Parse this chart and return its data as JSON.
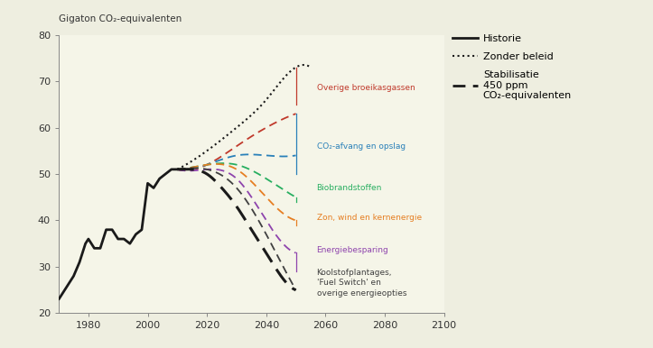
{
  "background_color": "#eeeee0",
  "plot_bg_color": "#f5f5e8",
  "title_y": "Gigaton CO₂-equivalenten",
  "xlim": [
    1970,
    2100
  ],
  "ylim": [
    20,
    80
  ],
  "xticks": [
    1980,
    2000,
    2020,
    2040,
    2060,
    2080,
    2100
  ],
  "yticks": [
    20,
    30,
    40,
    50,
    60,
    70,
    80
  ],
  "hist_x": [
    1970,
    1973,
    1975,
    1977,
    1979,
    1980,
    1982,
    1984,
    1986,
    1988,
    1990,
    1992,
    1994,
    1996,
    1998,
    2000,
    2002,
    2004,
    2006,
    2008,
    2010
  ],
  "hist_y": [
    23,
    26,
    28,
    31,
    35,
    36,
    34,
    34,
    38,
    38,
    36,
    36,
    35,
    37,
    38,
    48,
    47,
    49,
    50,
    51,
    51
  ],
  "zb_x": [
    2010,
    2020,
    2030,
    2040,
    2050,
    2055
  ],
  "zb_y": [
    51,
    55,
    60,
    66,
    73,
    73
  ],
  "stab_x": [
    2010,
    2015,
    2020,
    2025,
    2030,
    2035,
    2040,
    2045,
    2050
  ],
  "stab_y": [
    51,
    51,
    50,
    47,
    43,
    38,
    33,
    28,
    25
  ],
  "ovb_x": [
    2010,
    2020,
    2030,
    2040,
    2050
  ],
  "ovb_y": [
    51,
    52,
    56,
    60,
    63
  ],
  "ccs_x": [
    2010,
    2020,
    2030,
    2040,
    2050
  ],
  "ccs_y": [
    51,
    52,
    54,
    54,
    54
  ],
  "bio_x": [
    2010,
    2020,
    2030,
    2040,
    2050
  ],
  "bio_y": [
    51,
    52,
    52,
    49,
    45
  ],
  "zon_x": [
    2010,
    2020,
    2030,
    2040,
    2050
  ],
  "zon_y": [
    51,
    52,
    51,
    45,
    40
  ],
  "ener_x": [
    2010,
    2020,
    2030,
    2040,
    2050
  ],
  "ener_y": [
    51,
    51,
    49,
    40,
    33
  ],
  "kool_x": [
    2010,
    2020,
    2030,
    2040,
    2050
  ],
  "kool_y": [
    51,
    51,
    47,
    37,
    25
  ],
  "ovb_color": "#c0392b",
  "ccs_color": "#2980b9",
  "bio_color": "#27ae60",
  "zon_color": "#e67e22",
  "ener_color": "#8e44ad",
  "kool_color": "#404040",
  "annotations": [
    {
      "text": "Overige broeikasgassen",
      "x_ann": 2057,
      "y_ann": 68,
      "y_line_top": 73,
      "y_line_bot": 65,
      "color": "#c0392b"
    },
    {
      "text": "CO₂-afvang en opslag",
      "x_ann": 2057,
      "y_ann": 56,
      "y_line_top": 54,
      "y_line_bot": 50,
      "color": "#2980b9"
    },
    {
      "text": "Biobrandstoffen",
      "x_ann": 2057,
      "y_ann": 47,
      "y_line_top": 45,
      "y_line_bot": 44,
      "color": "#27ae60"
    },
    {
      "text": "Zon, wind en kernenergie",
      "x_ann": 2057,
      "y_ann": 40,
      "y_line_top": 40,
      "y_line_bot": 39,
      "color": "#e67e22"
    },
    {
      "text": "Energiebesparing",
      "x_ann": 2057,
      "y_ann": 33,
      "y_line_top": 33,
      "y_line_bot": 30,
      "color": "#8e44ad"
    },
    {
      "text": "Koolstofplantages,\n'Fuel Switch' en\noverige energieopties",
      "x_ann": 2057,
      "y_ann": 26,
      "y_line_top": 25,
      "y_line_bot": 25,
      "color": "#404040"
    }
  ]
}
